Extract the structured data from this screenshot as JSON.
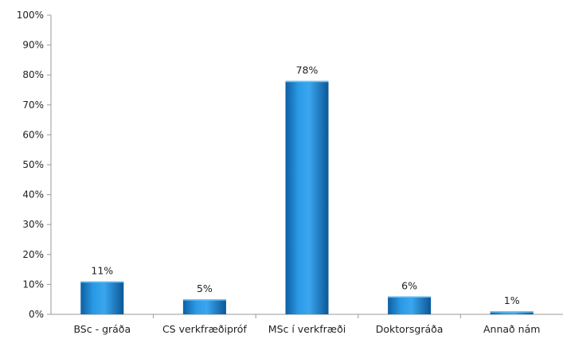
{
  "chart_data": {
    "type": "bar",
    "title": "",
    "xlabel": "",
    "ylabel": "",
    "categories": [
      "BSc - gráða",
      "CS verkfræðipróf",
      "MSc í verkfræði",
      "Doktorsgráða",
      "Annað nám"
    ],
    "values": [
      11,
      5,
      78,
      6,
      1
    ],
    "data_labels": [
      "11%",
      "5%",
      "78%",
      "6%",
      "1%"
    ],
    "ylim": [
      0,
      100
    ],
    "y_ticks": [
      0,
      10,
      20,
      30,
      40,
      50,
      60,
      70,
      80,
      90,
      100
    ],
    "y_tick_labels": [
      "0%",
      "10%",
      "20%",
      "30%",
      "40%",
      "50%",
      "60%",
      "70%",
      "80%",
      "90%",
      "100%"
    ],
    "grid": false,
    "legend": "none",
    "bar_color": "#1a7fd0"
  }
}
